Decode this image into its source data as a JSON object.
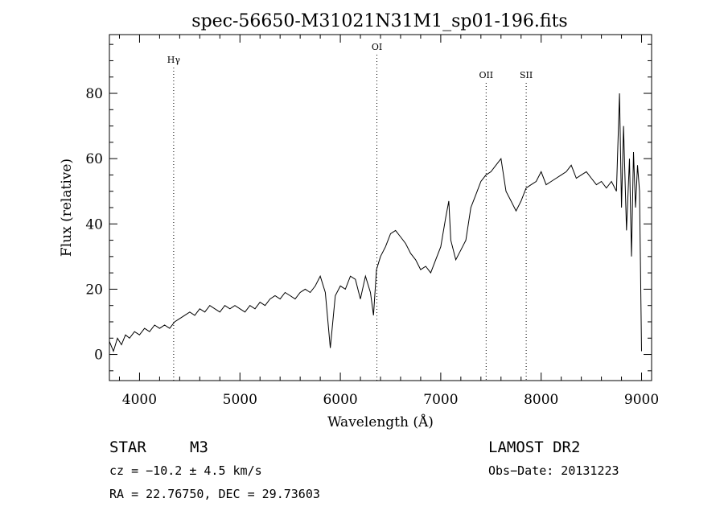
{
  "chart_data": {
    "type": "line",
    "title": "spec-56650-M31021N31M1_sp01-196.fits",
    "xlabel": "Wavelength (Å)",
    "ylabel": "Flux (relative)",
    "xlim": [
      3700,
      9100
    ],
    "ylim": [
      -8,
      98
    ],
    "x_ticks": [
      "4000",
      "5000",
      "6000",
      "7000",
      "8000",
      "9000"
    ],
    "y_ticks": [
      "0",
      "20",
      "40",
      "60",
      "80"
    ],
    "grid": false,
    "lines": [
      {
        "label": "Hγ",
        "x": 4340
      },
      {
        "label": "OI",
        "x": 6364
      },
      {
        "label": "OII",
        "x": 7452
      },
      {
        "label": "SII",
        "x": 7851
      }
    ],
    "series": [
      {
        "values": [
          [
            3700,
            4
          ],
          [
            3740,
            1
          ],
          [
            3780,
            5
          ],
          [
            3820,
            3
          ],
          [
            3860,
            6
          ],
          [
            3900,
            5
          ],
          [
            3950,
            7
          ],
          [
            4000,
            6
          ],
          [
            4050,
            8
          ],
          [
            4100,
            7
          ],
          [
            4150,
            9
          ],
          [
            4200,
            8
          ],
          [
            4250,
            9
          ],
          [
            4300,
            8
          ],
          [
            4350,
            10
          ],
          [
            4400,
            11
          ],
          [
            4450,
            12
          ],
          [
            4500,
            13
          ],
          [
            4550,
            12
          ],
          [
            4600,
            14
          ],
          [
            4650,
            13
          ],
          [
            4700,
            15
          ],
          [
            4750,
            14
          ],
          [
            4800,
            13
          ],
          [
            4850,
            15
          ],
          [
            4900,
            14
          ],
          [
            4950,
            15
          ],
          [
            5000,
            14
          ],
          [
            5050,
            13
          ],
          [
            5100,
            15
          ],
          [
            5150,
            14
          ],
          [
            5200,
            16
          ],
          [
            5250,
            15
          ],
          [
            5300,
            17
          ],
          [
            5350,
            18
          ],
          [
            5400,
            17
          ],
          [
            5450,
            19
          ],
          [
            5500,
            18
          ],
          [
            5550,
            17
          ],
          [
            5600,
            19
          ],
          [
            5650,
            20
          ],
          [
            5700,
            19
          ],
          [
            5750,
            21
          ],
          [
            5800,
            24
          ],
          [
            5850,
            19
          ],
          [
            5900,
            2
          ],
          [
            5950,
            18
          ],
          [
            6000,
            21
          ],
          [
            6050,
            20
          ],
          [
            6100,
            24
          ],
          [
            6150,
            23
          ],
          [
            6200,
            17
          ],
          [
            6250,
            24
          ],
          [
            6300,
            19
          ],
          [
            6330,
            12
          ],
          [
            6360,
            26
          ],
          [
            6400,
            30
          ],
          [
            6450,
            33
          ],
          [
            6500,
            37
          ],
          [
            6550,
            38
          ],
          [
            6600,
            36
          ],
          [
            6650,
            34
          ],
          [
            6700,
            31
          ],
          [
            6750,
            29
          ],
          [
            6800,
            26
          ],
          [
            6850,
            27
          ],
          [
            6900,
            25
          ],
          [
            6950,
            29
          ],
          [
            7000,
            33
          ],
          [
            7050,
            42
          ],
          [
            7080,
            47
          ],
          [
            7100,
            35
          ],
          [
            7150,
            29
          ],
          [
            7200,
            32
          ],
          [
            7250,
            35
          ],
          [
            7300,
            45
          ],
          [
            7350,
            49
          ],
          [
            7400,
            53
          ],
          [
            7450,
            55
          ],
          [
            7500,
            56
          ],
          [
            7550,
            58
          ],
          [
            7600,
            60
          ],
          [
            7650,
            50
          ],
          [
            7700,
            47
          ],
          [
            7750,
            44
          ],
          [
            7800,
            47
          ],
          [
            7850,
            51
          ],
          [
            7900,
            52
          ],
          [
            7950,
            53
          ],
          [
            8000,
            56
          ],
          [
            8050,
            52
          ],
          [
            8100,
            53
          ],
          [
            8150,
            54
          ],
          [
            8200,
            55
          ],
          [
            8250,
            56
          ],
          [
            8300,
            58
          ],
          [
            8350,
            54
          ],
          [
            8400,
            55
          ],
          [
            8450,
            56
          ],
          [
            8500,
            54
          ],
          [
            8550,
            52
          ],
          [
            8600,
            53
          ],
          [
            8650,
            51
          ],
          [
            8700,
            53
          ],
          [
            8750,
            50
          ],
          [
            8780,
            80
          ],
          [
            8800,
            45
          ],
          [
            8820,
            70
          ],
          [
            8850,
            38
          ],
          [
            8880,
            60
          ],
          [
            8900,
            30
          ],
          [
            8920,
            62
          ],
          [
            8940,
            45
          ],
          [
            8960,
            58
          ],
          [
            8980,
            50
          ],
          [
            9000,
            1
          ]
        ]
      }
    ]
  },
  "footer": {
    "obj_type": "STAR",
    "subclass": "M3",
    "survey": "LAMOST DR2",
    "cz": "cz = −10.2 ± 4.5 km/s",
    "obs_date": "Obs−Date: 20131223",
    "radec": "RA =  22.76750, DEC =  29.73603"
  }
}
